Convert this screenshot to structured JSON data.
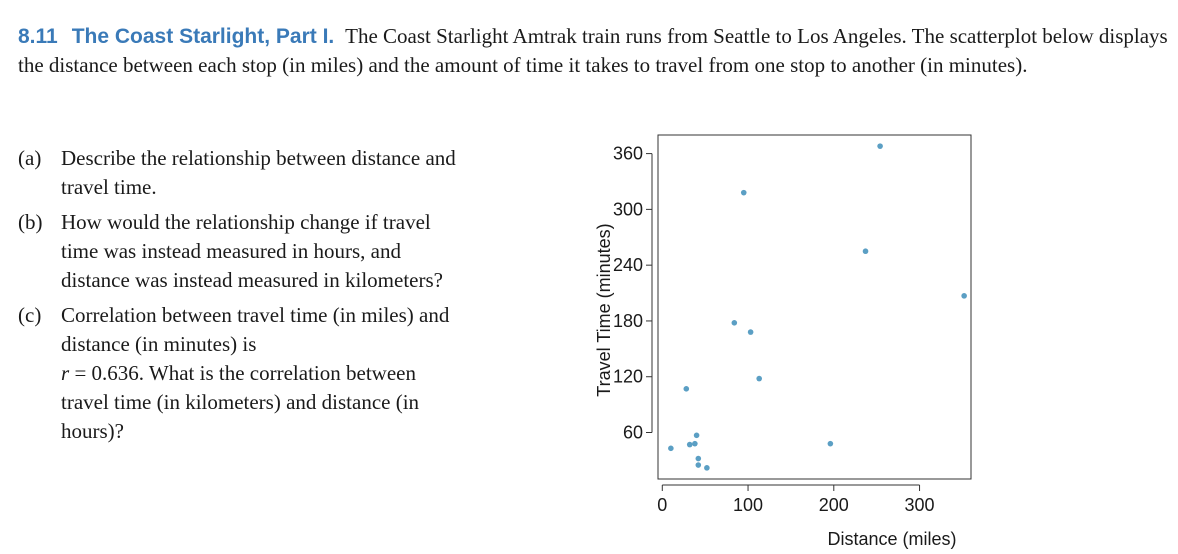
{
  "problem": {
    "number": "8.11",
    "title": "The Coast Starlight, Part I.",
    "intro": "The Coast Starlight Amtrak train runs from Seattle to Los Angeles. The scatterplot below displays the distance between each stop (in miles) and the amount of time it takes to travel from one stop to another (in minutes)."
  },
  "parts": [
    {
      "label": "(a)",
      "text": "Describe the relationship between distance and travel time."
    },
    {
      "label": "(b)",
      "text": "How would the relationship change if travel time was instead measured in hours, and distance was instead measured in kilometers?"
    },
    {
      "label": "(c)",
      "text_before": "Correlation between travel time (in miles) and distance (in minutes) is",
      "var": "r",
      "text_eq": " = 0.636. What is the correlation between travel time (in kilometers) and distance (in hours)?"
    }
  ],
  "colors": {
    "accent": "#3a7ab8",
    "point": "#5b9fc4"
  },
  "chart_data": {
    "type": "scatter",
    "xlabel": "Distance (miles)",
    "ylabel": "Travel Time (minutes)",
    "xlim": [
      -5,
      360
    ],
    "ylim": [
      10,
      380
    ],
    "xticks": [
      0,
      100,
      200,
      300
    ],
    "yticks": [
      60,
      120,
      180,
      240,
      300,
      360
    ],
    "points": [
      {
        "x": 10,
        "y": 43
      },
      {
        "x": 28,
        "y": 107
      },
      {
        "x": 32,
        "y": 47
      },
      {
        "x": 38,
        "y": 48
      },
      {
        "x": 40,
        "y": 57
      },
      {
        "x": 42,
        "y": 32
      },
      {
        "x": 42,
        "y": 25
      },
      {
        "x": 52,
        "y": 22
      },
      {
        "x": 84,
        "y": 178
      },
      {
        "x": 95,
        "y": 318
      },
      {
        "x": 103,
        "y": 168
      },
      {
        "x": 113,
        "y": 118
      },
      {
        "x": 196,
        "y": 48
      },
      {
        "x": 237,
        "y": 255
      },
      {
        "x": 254,
        "y": 368
      },
      {
        "x": 352,
        "y": 207
      }
    ]
  }
}
